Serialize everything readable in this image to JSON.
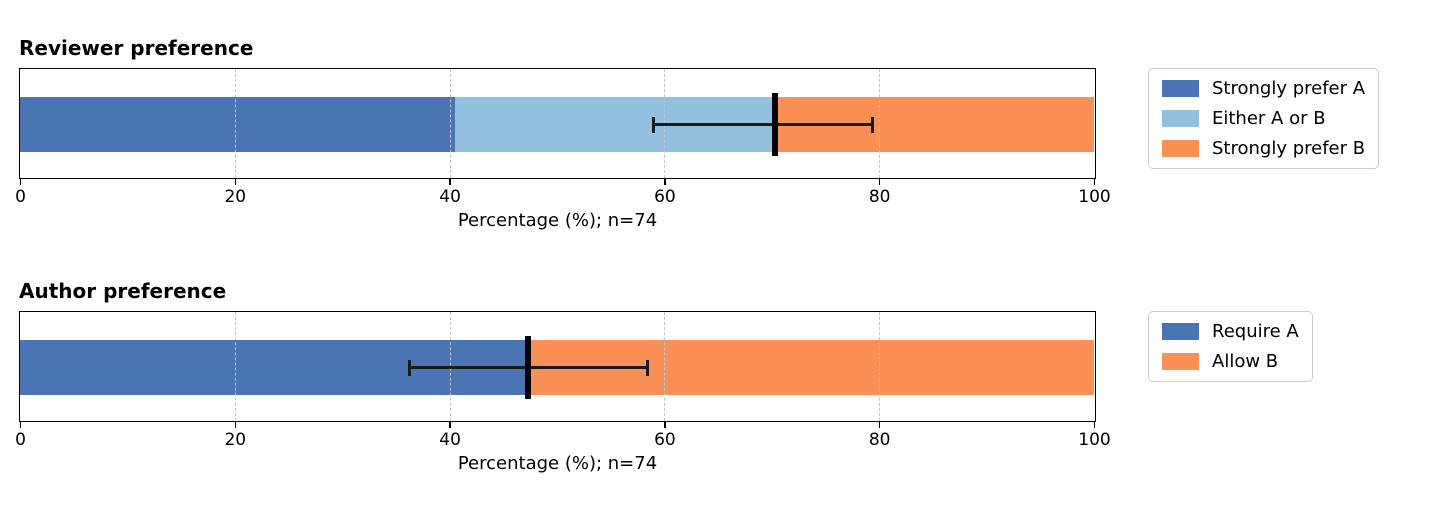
{
  "figure": {
    "background": "#ffffff",
    "axis_color": "#000000",
    "grid_color": "#c4c4c4"
  },
  "chart_data": [
    {
      "type": "bar",
      "orientation": "horizontal",
      "stacked": true,
      "title": "Reviewer preference",
      "xlabel": "Percentage (%); n=74",
      "xlim": [
        0,
        100
      ],
      "xticks": [
        0,
        20,
        40,
        60,
        80,
        100
      ],
      "grid_ticks": [
        20,
        40,
        60,
        80
      ],
      "grid": true,
      "series": [
        {
          "name": "Strongly prefer A",
          "value": 40.5,
          "color": "#4a74b4"
        },
        {
          "name": "Either A or B",
          "value": 29.8,
          "color": "#94c0df"
        },
        {
          "name": "Strongly prefer B",
          "value": 29.7,
          "color": "#fa9056"
        }
      ],
      "marker_line": {
        "value": 70.3
      },
      "error_bar": {
        "center": 70.3,
        "low": 59.0,
        "high": 79.4
      },
      "legend": {
        "position": "outside-right",
        "entries": [
          "Strongly prefer A",
          "Either A or B",
          "Strongly prefer B"
        ]
      }
    },
    {
      "type": "bar",
      "orientation": "horizontal",
      "stacked": true,
      "title": "Author preference",
      "xlabel": "Percentage (%); n=74",
      "xlim": [
        0,
        100
      ],
      "xticks": [
        0,
        20,
        40,
        60,
        80,
        100
      ],
      "grid_ticks": [
        20,
        40,
        60,
        80
      ],
      "grid": true,
      "series": [
        {
          "name": "Require A",
          "value": 47.3,
          "color": "#4a74b4"
        },
        {
          "name": "Allow B",
          "value": 52.7,
          "color": "#fa9056"
        }
      ],
      "marker_line": {
        "value": 47.3
      },
      "error_bar": {
        "center": 47.3,
        "low": 36.3,
        "high": 58.4
      },
      "legend": {
        "position": "outside-right",
        "entries": [
          "Require A",
          "Allow B"
        ]
      }
    }
  ]
}
